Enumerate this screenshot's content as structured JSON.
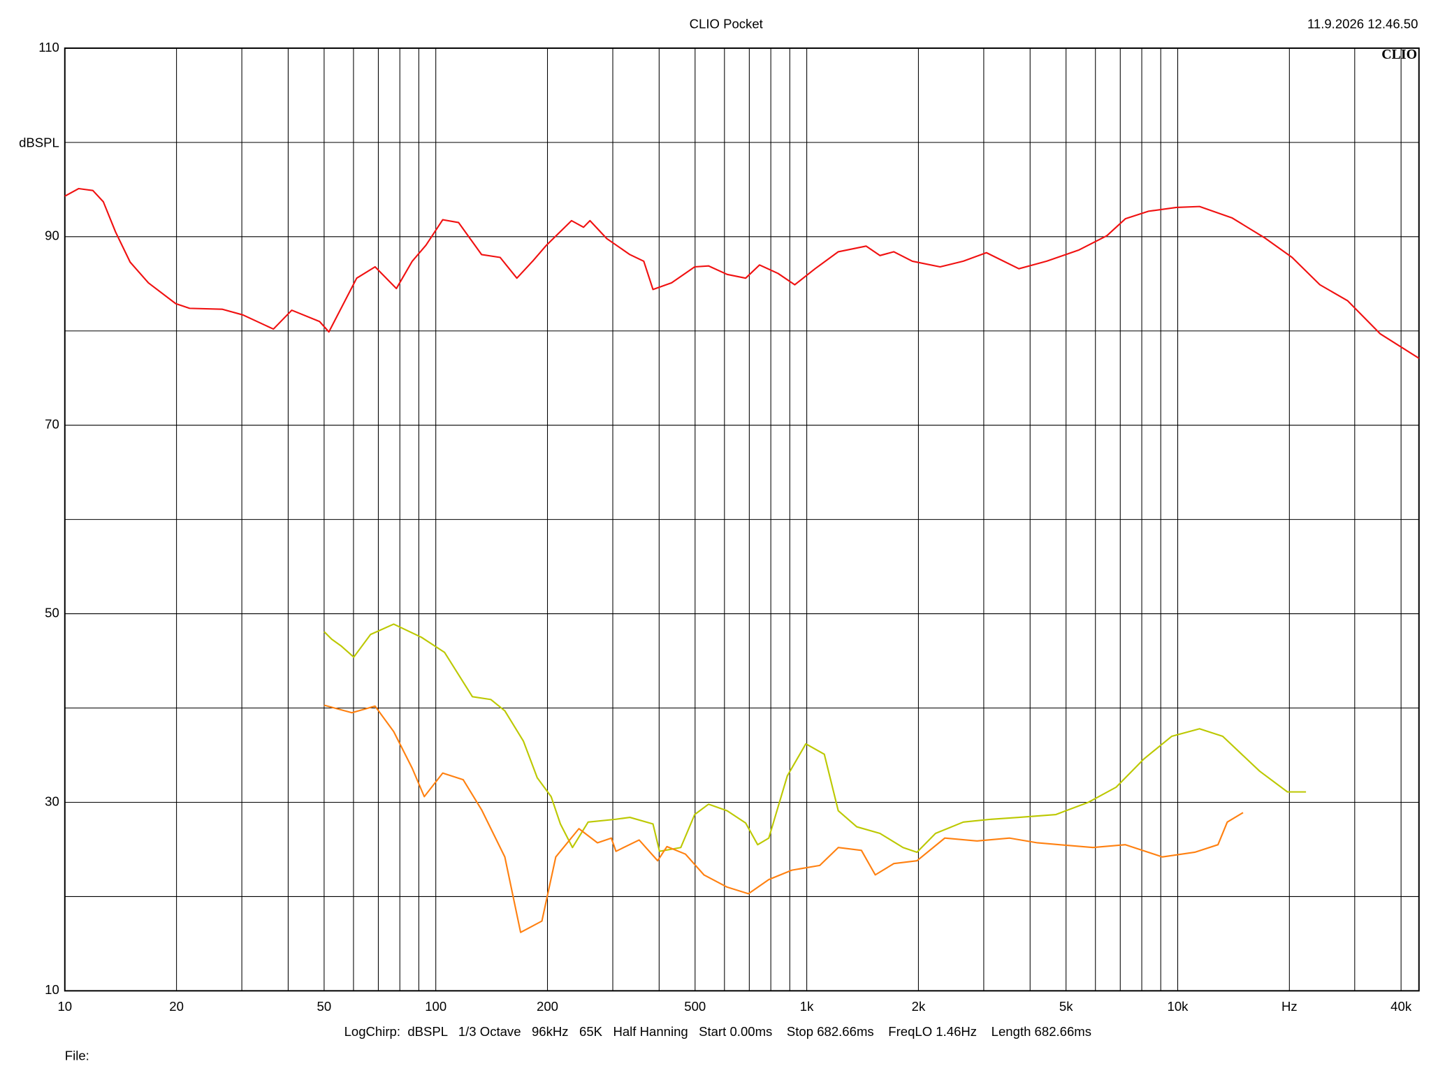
{
  "chart_data": {
    "type": "line",
    "title": "CLIO Pocket",
    "timestamp": "11.9.2026 12.46.50",
    "logo": "CLIO",
    "y_label": "dBSPL",
    "footer": "LogChirp:  dBSPL   1/3 Octave   96kHz   65K   Half Hanning   Start 0.00ms    Stop 682.66ms    FreqLO 1.46Hz    Length 682.66ms",
    "file_label": "File:",
    "xscale": "log",
    "grid": true,
    "xlim": [
      10,
      44700
    ],
    "ylim": [
      10,
      110
    ],
    "yticks": [
      10,
      30,
      50,
      70,
      90,
      110
    ],
    "y_minor_grid": [
      20,
      40,
      60,
      80,
      100
    ],
    "xticks": [
      10,
      20,
      50,
      100,
      200,
      500,
      {
        "value": 1000,
        "label": "1k"
      },
      {
        "value": 2000,
        "label": "2k"
      },
      {
        "value": 5000,
        "label": "5k"
      },
      {
        "value": 10000,
        "label": "10k"
      },
      {
        "value": 20000,
        "label": "Hz"
      },
      {
        "value": 40000,
        "label": "40k"
      }
    ],
    "x_minor_grid": [
      30,
      40,
      60,
      70,
      80,
      90,
      300,
      400,
      600,
      700,
      800,
      900,
      3000,
      4000,
      6000,
      7000,
      8000,
      9000,
      30000
    ],
    "series": [
      {
        "color": "#f01010",
        "x": [
          10,
          10.9,
          11.9,
          12.7,
          13.7,
          15.0,
          16.8,
          19.9,
          21.7,
          26.6,
          30.2,
          36.5,
          40.9,
          48.6,
          51.5,
          61.2,
          68.6,
          78.3,
          86.4,
          94.1,
          104.4,
          115.2,
          132.9,
          149.1,
          165.4,
          182.4,
          198.8,
          232.2,
          250.2,
          260.4,
          288.9,
          333.6,
          363.6,
          385.0,
          432.1,
          498.8,
          543.6,
          610.1,
          684.3,
          746.0,
          836.8,
          928.1,
          1053,
          1216,
          1445,
          1575,
          1717,
          1926,
          2288,
          2642,
          3050,
          3731,
          4433,
          5423,
          6442,
          7226,
          8343,
          9916,
          11450,
          14000,
          17120,
          20340,
          24170,
          28720,
          35130,
          44700
        ],
        "values": [
          94.3,
          95.1,
          94.9,
          93.7,
          90.5,
          87.3,
          85.1,
          82.9,
          82.4,
          82.3,
          81.7,
          80.2,
          82.2,
          81.0,
          79.9,
          85.6,
          86.8,
          84.5,
          87.4,
          89.1,
          91.8,
          91.5,
          88.1,
          87.8,
          85.6,
          87.4,
          89.1,
          91.7,
          91.0,
          91.7,
          89.8,
          88.1,
          87.4,
          84.4,
          85.1,
          86.8,
          86.9,
          86.0,
          85.6,
          87.0,
          86.1,
          84.9,
          86.6,
          88.4,
          89.0,
          88.0,
          88.4,
          87.4,
          86.8,
          87.4,
          88.3,
          86.6,
          87.4,
          88.6,
          90.1,
          91.9,
          92.7,
          93.1,
          93.2,
          92.0,
          89.9,
          87.8,
          84.9,
          83.2,
          79.7,
          77.1
        ]
      },
      {
        "color": "#bcc800",
        "x": [
          50.0,
          52.4,
          55.5,
          60.1,
          66.7,
          77.0,
          91.5,
          105.6,
          125.5,
          140.8,
          153.5,
          172.2,
          187.7,
          204.6,
          216.7,
          233.6,
          257.4,
          305.9,
          333.6,
          385.0,
          400.9,
          457.5,
          498.8,
          543.6,
          610.1,
          684.3,
          737.4,
          790.0,
          886.3,
          994.3,
          1115,
          1216,
          1364,
          1575,
          1818,
          1982,
          2224,
          2642,
          3140,
          3731,
          4695,
          5743,
          6823,
          8108,
          9634,
          11450,
          13220,
          16630,
          19760,
          22170
        ],
        "values": [
          48.1,
          47.3,
          46.6,
          45.4,
          47.8,
          48.9,
          47.5,
          45.9,
          41.2,
          40.9,
          39.7,
          36.5,
          32.6,
          30.6,
          27.7,
          25.2,
          27.9,
          28.2,
          28.4,
          27.7,
          24.8,
          25.2,
          28.7,
          29.8,
          29.1,
          27.8,
          25.5,
          26.2,
          32.8,
          36.2,
          35.1,
          29.1,
          27.4,
          26.7,
          25.2,
          24.7,
          26.7,
          27.9,
          28.2,
          28.4,
          28.7,
          30.0,
          31.6,
          34.6,
          37.0,
          37.8,
          37.0,
          33.3,
          31.1,
          31.1
        ]
      },
      {
        "color": "#ff8010",
        "x": [
          50.0,
          59.4,
          68.6,
          77.0,
          86.4,
          93.1,
          104.4,
          118.5,
          132.9,
          153.5,
          169.3,
          193.2,
          210.6,
          243.1,
          272.8,
          297.3,
          305.9,
          353.3,
          396.3,
          419.8,
          471.0,
          528.2,
          610.1,
          696.2,
          790.0,
          912.0,
          1084,
          1216,
          1404,
          1530,
          1717,
          1982,
          2355,
          2880,
          3523,
          4184,
          5909,
          7226,
          9096,
          11120,
          12840,
          13600,
          15000
        ],
        "values": [
          40.3,
          39.5,
          40.2,
          37.5,
          33.6,
          30.6,
          33.1,
          32.4,
          29.2,
          24.2,
          16.2,
          17.4,
          24.2,
          27.2,
          25.7,
          26.2,
          24.8,
          26.0,
          23.8,
          25.3,
          24.5,
          22.3,
          21.0,
          20.3,
          21.8,
          22.8,
          23.3,
          25.2,
          24.9,
          22.3,
          23.5,
          23.8,
          26.2,
          25.9,
          26.2,
          25.7,
          25.2,
          25.5,
          24.2,
          24.7,
          25.5,
          27.9,
          28.9
        ]
      }
    ]
  }
}
